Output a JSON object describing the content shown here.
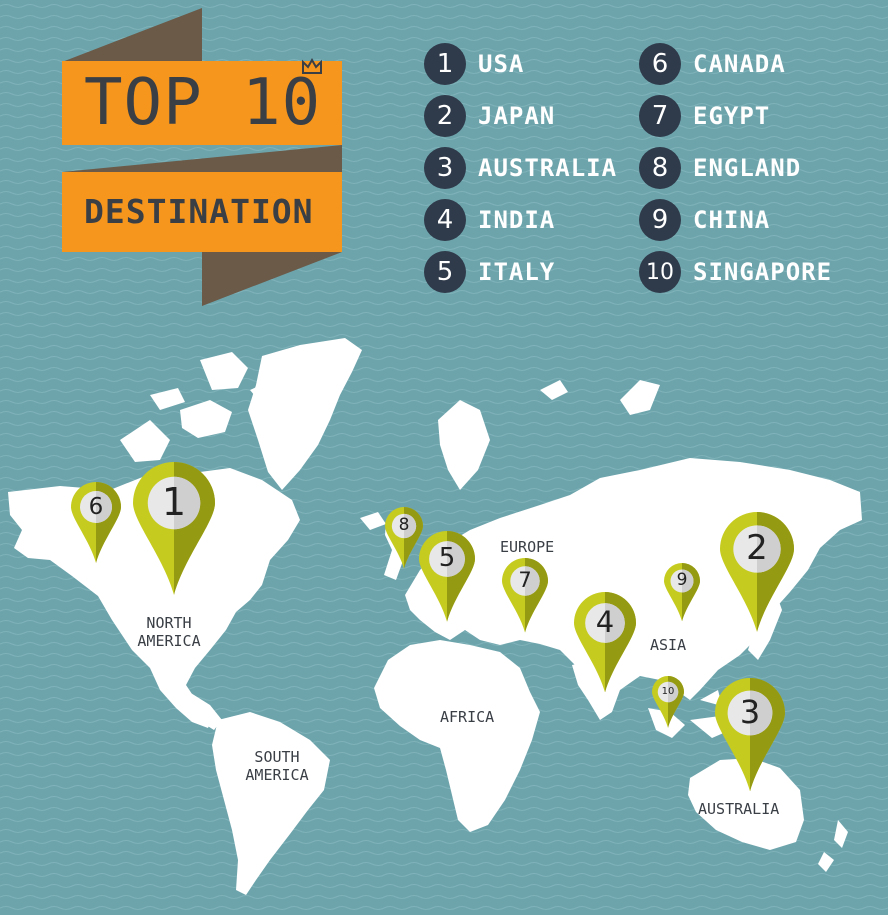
{
  "banner": {
    "title": "TOP 10",
    "subtitle": "DESTINATION"
  },
  "ranking": [
    {
      "rank": "1",
      "name": "USA"
    },
    {
      "rank": "2",
      "name": "JAPAN"
    },
    {
      "rank": "3",
      "name": "AUSTRALIA"
    },
    {
      "rank": "4",
      "name": "INDIA"
    },
    {
      "rank": "5",
      "name": "ITALY"
    },
    {
      "rank": "6",
      "name": "CANADA"
    },
    {
      "rank": "7",
      "name": "EGYPT"
    },
    {
      "rank": "8",
      "name": "ENGLAND"
    },
    {
      "rank": "9",
      "name": "CHINA"
    },
    {
      "rank": "10",
      "name": "SINGAPORE"
    }
  ],
  "regions": {
    "north_america": "NORTH AMERICA",
    "south_america": "SOUTH AMERICA",
    "europe": "EUROPE",
    "africa": "AFRICA",
    "asia": "ASIA",
    "australia": "AUSTRALIA"
  },
  "pins": [
    "1",
    "2",
    "3",
    "4",
    "5",
    "6",
    "7",
    "8",
    "9",
    "10"
  ],
  "colors": {
    "background": "#6da4ac",
    "land": "#ffffff",
    "banner": "#f7961d",
    "ribbon_shadow": "#6b5a48",
    "pin_light": "#c5cc1f",
    "pin_dark": "#959a13",
    "badge": "#2f3a4a"
  },
  "icons": {
    "crown": "crown-icon",
    "pin": "map-pin-icon"
  }
}
